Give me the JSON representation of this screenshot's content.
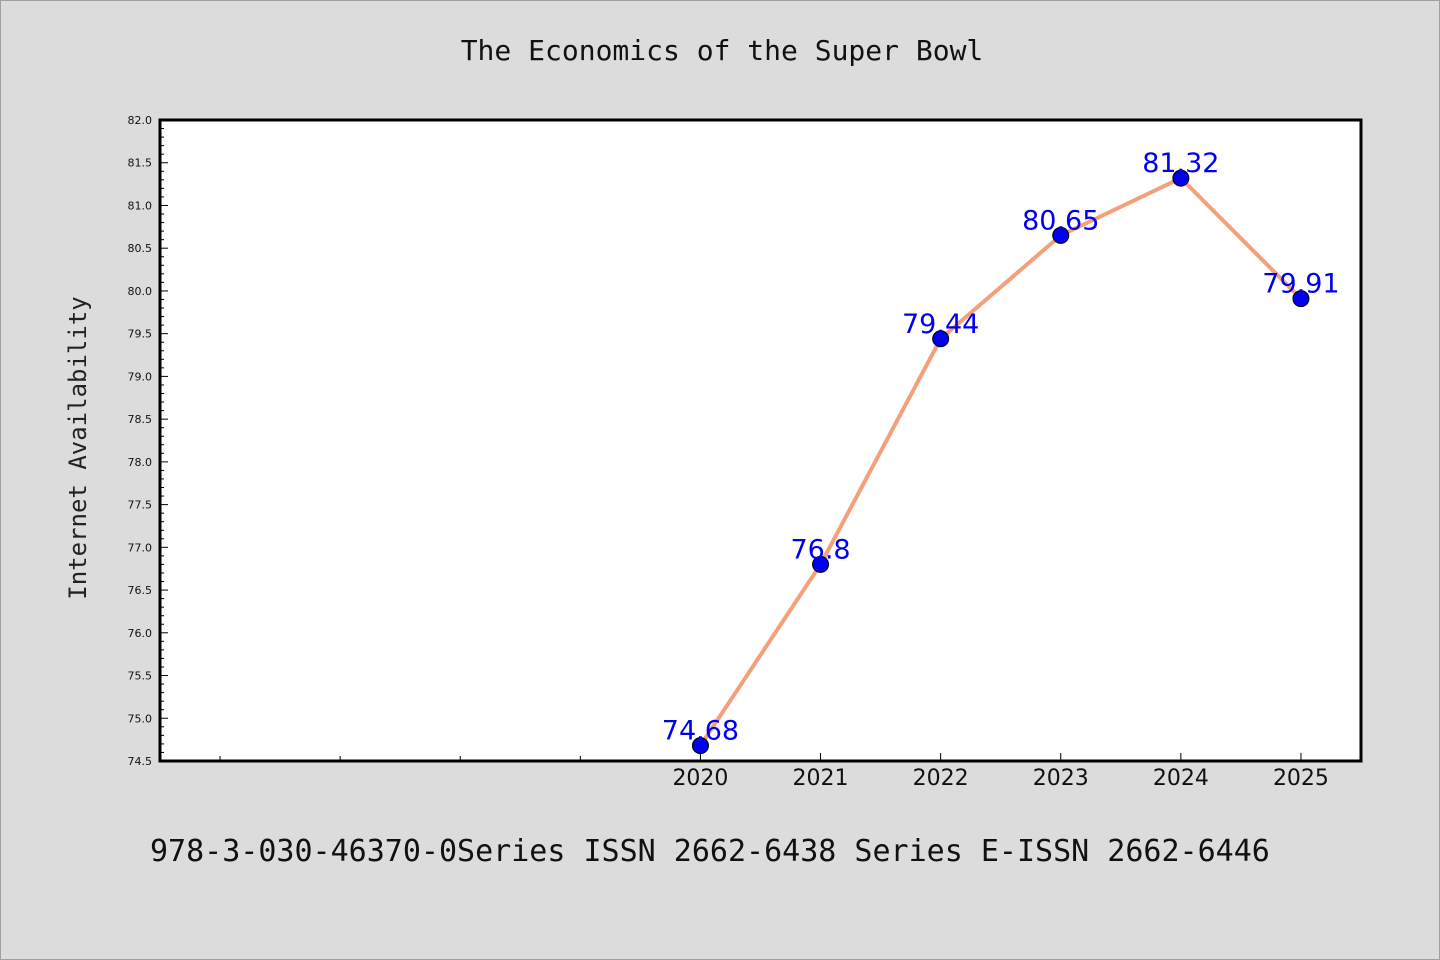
{
  "chart_data": {
    "type": "line",
    "title": "The Economics of the Super Bowl",
    "xlabel": "",
    "ylabel": "Internet Availability",
    "categories": [
      "2020",
      "2021",
      "2022",
      "2023",
      "2024",
      "2025"
    ],
    "series": [
      {
        "values": [
          74.68,
          76.8,
          79.44,
          80.65,
          81.32,
          79.91
        ],
        "data_labels": [
          "74.68",
          "76.8",
          "79.44",
          "80.65",
          "81.32",
          "79.91"
        ]
      }
    ],
    "xlim": [
      2015.5,
      2025.5
    ],
    "ylim": [
      74.5,
      82.0
    ],
    "y_ticks": [
      "74.5",
      "75.0",
      "75.5",
      "76.0",
      "76.5",
      "77.0",
      "77.5",
      "78.0",
      "78.5",
      "79.0",
      "79.5",
      "80.0",
      "80.5",
      "81.0",
      "81.5",
      "82.0"
    ],
    "unlabeled_x_ticks": [
      2016,
      2017,
      2018,
      2019
    ],
    "grid": false,
    "line_color": "#f4a07a",
    "marker_color": "#0000ee",
    "label_color": "#0000ee"
  },
  "footer": {
    "text": "978-3-030-46370-0Series ISSN 2662-6438 Series E-ISSN 2662-6446"
  }
}
